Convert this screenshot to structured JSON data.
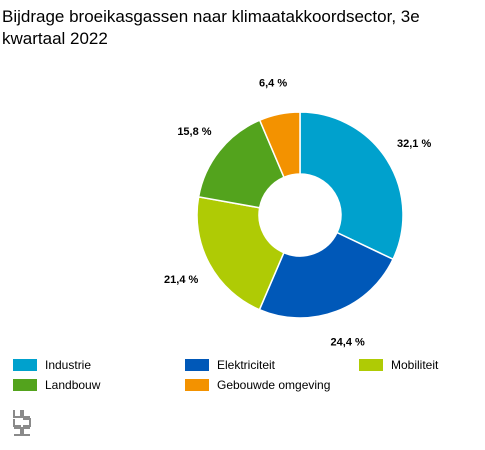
{
  "title": "Bijdrage broeikasgassen naar klimaatakkoordsector, 3e kwartaal 2022",
  "chart_data": {
    "type": "pie",
    "subtype": "donut",
    "categories": [
      "Industrie",
      "Elektriciteit",
      "Mobiliteit",
      "Landbouw",
      "Gebouwde omgeving"
    ],
    "values": [
      32.1,
      24.4,
      21.4,
      15.8,
      6.4
    ],
    "labels": [
      "32,1 %",
      "24,4 %",
      "21,4 %",
      "15,8 %",
      "6,4 %"
    ],
    "colors": [
      "#00a1cd",
      "#0058b8",
      "#afcb05",
      "#53a31d",
      "#f39200"
    ],
    "legend_position": "bottom"
  },
  "logo": {
    "name": "cbs-logo",
    "text": "cbs"
  }
}
